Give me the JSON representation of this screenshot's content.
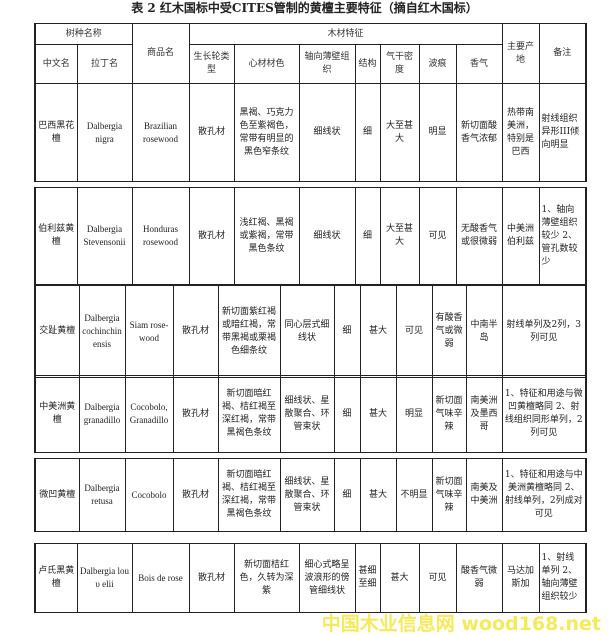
{
  "title": "表  2 红木国标中受CITES管制的黄檀主要特征（摘自红木国标）",
  "header": {
    "group_species": "树种名称",
    "trade_name": "商品名",
    "group_wood": "木材特征",
    "origin": "主要产地",
    "remarks": "备注",
    "chinese_name": "中文名",
    "latin_name": "拉丁名",
    "growth_ring": "生长轮类型",
    "heartwood_color": "心材材色",
    "parenchyma": "轴向薄壁组织",
    "structure": "结构",
    "density": "气干密度",
    "ripple": "波痕",
    "aroma": "香气"
  },
  "rows": [
    {
      "cells": [
        "巴西黑花檀",
        "Dalbergia nigra",
        "Brazilian rosewood",
        "散孔材",
        "黑褐、巧克力色至紫褐色，常带有明显的黑色窄条纹",
        "细线状",
        "细",
        "大至甚大",
        "明显",
        "新切面酸香气浓郁",
        "热带南美洲，特别是巴西",
        "射线组织异形III倾向明显"
      ]
    },
    {
      "cells": [
        "伯利兹黄檀",
        "Dalbergia Stevensonii",
        "Honduras rosewood",
        "散孔材",
        "浅红褐、黑褐或紫褐，常带黑色条纹",
        "细线状",
        "细",
        "大至甚大",
        "可见",
        "无酸香气或很微弱",
        "中美洲伯利兹",
        "1、轴向薄壁组织较少 2、管孔数较少"
      ]
    },
    {
      "cells": [
        "交趾黄檀",
        "Dalbergia cochinchinensis",
        "Siam rose-wood",
        "散孔材",
        "新切面紫红褐或暗红褐，常带黑褐或栗褐色细条纹",
        "同心层式细线状",
        "细",
        "甚大",
        "可见",
        "有酸香气或微弱",
        "中南半岛",
        "射线单列及2列，3列可见"
      ]
    },
    {
      "cells": [
        "中美洲黄檀",
        "Dalbergia granadillo",
        "Cocobolo, Granadillo",
        "散孔材",
        "新切面暗红褐、桔红褐至深红褐，常带黑褐色条纹",
        "细线状、星散聚合、环管束状",
        "细",
        "甚大",
        "明显",
        "新切面气味辛辣",
        "南美洲及墨西哥",
        "1、特征和用途与微凹黄檀略同 2、射线组织同形单列，2列可见"
      ]
    },
    {
      "cells": [
        "微凹黄檀",
        "Dalbergia retusa",
        "Cocobolo",
        "散孔材",
        "新切面暗红褐、桔红褐至深红褐，常带黑褐色条纹",
        "细线状、星散聚合、环管束状",
        "细",
        "甚大",
        "不明显",
        "新切面气味辛辣",
        "南美及中美洲",
        "1、特征和用途与中美洲黄檀略同 2、射线单列，2列成对可见"
      ]
    },
    {
      "cells": [
        "卢氏黑黄檀",
        "Dalbergia lou υ elii",
        "Bois de rose",
        "散孔材",
        "新切面桔红色，久转为深紫",
        "细心式略呈波浪形的傍管细线状",
        "甚细至细",
        "甚大",
        "可见",
        "酸香气微弱",
        "马达加斯加",
        "1、射线单列 2、轴向薄壁组织较少"
      ]
    }
  ],
  "watermark": "中国木业信息网 wood168.net",
  "colors": {
    "border": "#222222",
    "watermark": "#f3e84a"
  }
}
